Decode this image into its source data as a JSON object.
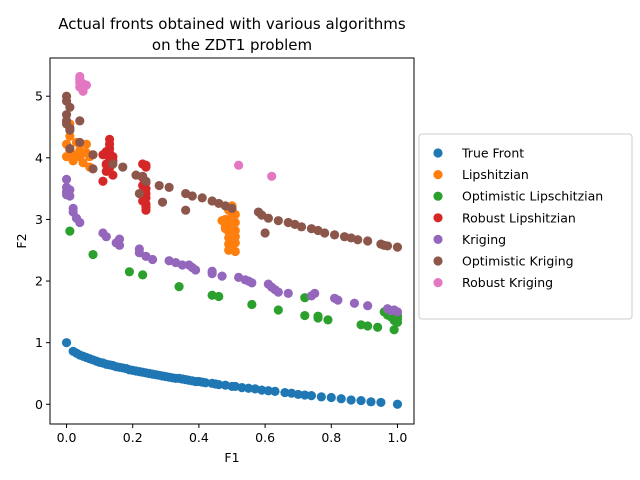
{
  "chart_data": {
    "type": "scatter",
    "title_lines": [
      "Actual fronts obtained with various algorithms",
      "on the ZDT1 problem"
    ],
    "xlabel": "F1",
    "ylabel": "F2",
    "xlim": [
      -0.05,
      1.05
    ],
    "ylim": [
      -0.32,
      5.62
    ],
    "xticks": [
      0.0,
      0.2,
      0.4,
      0.6,
      0.8,
      1.0
    ],
    "xtick_labels": [
      "0.0",
      "0.2",
      "0.4",
      "0.6",
      "0.8",
      "1.0"
    ],
    "yticks": [
      0,
      1,
      2,
      3,
      4,
      5
    ],
    "ytick_labels": [
      "0",
      "1",
      "2",
      "3",
      "4",
      "5"
    ],
    "legend_position": "right",
    "series": [
      {
        "name": "True Front",
        "color": "#1f77b4",
        "points": [
          [
            0.0,
            1.0
          ],
          [
            0.02,
            0.86
          ],
          [
            0.03,
            0.83
          ],
          [
            0.04,
            0.8
          ],
          [
            0.05,
            0.78
          ],
          [
            0.06,
            0.76
          ],
          [
            0.07,
            0.74
          ],
          [
            0.08,
            0.72
          ],
          [
            0.09,
            0.7
          ],
          [
            0.1,
            0.68
          ],
          [
            0.11,
            0.67
          ],
          [
            0.12,
            0.65
          ],
          [
            0.13,
            0.64
          ],
          [
            0.14,
            0.63
          ],
          [
            0.15,
            0.61
          ],
          [
            0.16,
            0.6
          ],
          [
            0.17,
            0.59
          ],
          [
            0.18,
            0.58
          ],
          [
            0.19,
            0.56
          ],
          [
            0.2,
            0.55
          ],
          [
            0.21,
            0.54
          ],
          [
            0.22,
            0.53
          ],
          [
            0.23,
            0.52
          ],
          [
            0.24,
            0.51
          ],
          [
            0.25,
            0.5
          ],
          [
            0.26,
            0.49
          ],
          [
            0.27,
            0.48
          ],
          [
            0.28,
            0.47
          ],
          [
            0.29,
            0.46
          ],
          [
            0.3,
            0.45
          ],
          [
            0.31,
            0.44
          ],
          [
            0.32,
            0.43
          ],
          [
            0.33,
            0.42
          ],
          [
            0.34,
            0.42
          ],
          [
            0.35,
            0.41
          ],
          [
            0.36,
            0.4
          ],
          [
            0.37,
            0.39
          ],
          [
            0.38,
            0.38
          ],
          [
            0.39,
            0.37
          ],
          [
            0.4,
            0.37
          ],
          [
            0.41,
            0.36
          ],
          [
            0.42,
            0.35
          ],
          [
            0.44,
            0.34
          ],
          [
            0.45,
            0.33
          ],
          [
            0.46,
            0.32
          ],
          [
            0.48,
            0.31
          ],
          [
            0.5,
            0.29
          ],
          [
            0.51,
            0.29
          ],
          [
            0.53,
            0.27
          ],
          [
            0.55,
            0.26
          ],
          [
            0.57,
            0.25
          ],
          [
            0.59,
            0.23
          ],
          [
            0.61,
            0.22
          ],
          [
            0.63,
            0.21
          ],
          [
            0.66,
            0.19
          ],
          [
            0.68,
            0.18
          ],
          [
            0.7,
            0.16
          ],
          [
            0.72,
            0.15
          ],
          [
            0.74,
            0.14
          ],
          [
            0.77,
            0.12
          ],
          [
            0.8,
            0.11
          ],
          [
            0.83,
            0.09
          ],
          [
            0.86,
            0.07
          ],
          [
            0.89,
            0.06
          ],
          [
            0.92,
            0.04
          ],
          [
            0.95,
            0.03
          ],
          [
            1.0,
            0.0
          ]
        ]
      },
      {
        "name": "Lipshitzian",
        "color": "#ff7f0e",
        "points": [
          [
            0.01,
            4.55
          ],
          [
            0.01,
            4.35
          ],
          [
            0.0,
            4.22
          ],
          [
            0.01,
            4.12
          ],
          [
            0.0,
            4.02
          ],
          [
            0.02,
            4.05
          ],
          [
            0.02,
            3.95
          ],
          [
            0.03,
            4.25
          ],
          [
            0.04,
            4.12
          ],
          [
            0.04,
            4.02
          ],
          [
            0.05,
            3.92
          ],
          [
            0.06,
            4.08
          ],
          [
            0.06,
            4.22
          ],
          [
            0.07,
            4.02
          ],
          [
            0.07,
            3.85
          ],
          [
            0.12,
            3.88
          ],
          [
            0.13,
            3.82
          ],
          [
            0.47,
            2.98
          ],
          [
            0.48,
            3.0
          ],
          [
            0.49,
            2.95
          ],
          [
            0.5,
            3.22
          ],
          [
            0.5,
            3.05
          ],
          [
            0.5,
            2.92
          ],
          [
            0.48,
            2.85
          ],
          [
            0.49,
            2.8
          ],
          [
            0.5,
            2.75
          ],
          [
            0.49,
            2.7
          ],
          [
            0.5,
            2.65
          ],
          [
            0.49,
            2.6
          ],
          [
            0.5,
            2.55
          ],
          [
            0.49,
            2.5
          ],
          [
            0.5,
            2.58
          ],
          [
            0.51,
            2.62
          ],
          [
            0.51,
            2.72
          ],
          [
            0.51,
            2.82
          ],
          [
            0.51,
            2.95
          ],
          [
            0.51,
            3.08
          ],
          [
            0.49,
            3.15
          ],
          [
            0.48,
            2.88
          ],
          [
            0.5,
            2.68
          ],
          [
            0.51,
            2.48
          ],
          [
            0.5,
            2.85
          ],
          [
            0.5,
            2.98
          ],
          [
            0.5,
            3.12
          ]
        ]
      },
      {
        "name": "Optimistic Lipschitzian",
        "color": "#2ca02c",
        "points": [
          [
            0.01,
            2.81
          ],
          [
            0.08,
            2.43
          ],
          [
            0.19,
            2.15
          ],
          [
            0.23,
            2.1
          ],
          [
            0.34,
            1.91
          ],
          [
            0.44,
            1.77
          ],
          [
            0.46,
            1.75
          ],
          [
            0.56,
            1.62
          ],
          [
            0.64,
            1.53
          ],
          [
            0.72,
            1.73
          ],
          [
            0.72,
            1.44
          ],
          [
            0.76,
            1.43
          ],
          [
            0.76,
            1.4
          ],
          [
            0.79,
            1.37
          ],
          [
            0.89,
            1.29
          ],
          [
            0.91,
            1.27
          ],
          [
            0.94,
            1.25
          ],
          [
            0.96,
            1.5
          ],
          [
            0.97,
            1.45
          ],
          [
            0.98,
            1.42
          ],
          [
            0.99,
            1.4
          ],
          [
            0.98,
            1.48
          ],
          [
            1.0,
            1.45
          ],
          [
            0.99,
            1.5
          ],
          [
            0.99,
            1.36
          ],
          [
            1.0,
            1.38
          ],
          [
            1.0,
            1.42
          ],
          [
            0.99,
            1.44
          ],
          [
            1.0,
            1.33
          ],
          [
            0.99,
            1.21
          ]
        ]
      },
      {
        "name": "Robust Lipshitzian",
        "color": "#d62728",
        "points": [
          [
            0.11,
            3.62
          ],
          [
            0.11,
            4.05
          ],
          [
            0.12,
            3.78
          ],
          [
            0.12,
            3.9
          ],
          [
            0.13,
            4.3
          ],
          [
            0.13,
            4.22
          ],
          [
            0.13,
            4.15
          ],
          [
            0.13,
            4.08
          ],
          [
            0.13,
            4.0
          ],
          [
            0.13,
            3.92
          ],
          [
            0.13,
            3.85
          ],
          [
            0.14,
            3.72
          ],
          [
            0.12,
            4.1
          ],
          [
            0.14,
            4.02
          ],
          [
            0.14,
            3.95
          ],
          [
            0.23,
            3.9
          ],
          [
            0.24,
            3.85
          ],
          [
            0.23,
            3.68
          ],
          [
            0.24,
            3.6
          ],
          [
            0.24,
            3.5
          ],
          [
            0.24,
            3.42
          ],
          [
            0.23,
            3.3
          ],
          [
            0.24,
            3.25
          ],
          [
            0.24,
            3.2
          ],
          [
            0.24,
            3.15
          ],
          [
            0.24,
            3.88
          ],
          [
            0.23,
            3.55
          ],
          [
            0.24,
            3.35
          ]
        ]
      },
      {
        "name": "Kriging",
        "color": "#9467bd",
        "points": [
          [
            0.0,
            3.65
          ],
          [
            0.0,
            3.52
          ],
          [
            0.0,
            3.45
          ],
          [
            0.0,
            3.4
          ],
          [
            0.01,
            3.48
          ],
          [
            0.01,
            3.38
          ],
          [
            0.02,
            3.18
          ],
          [
            0.02,
            3.12
          ],
          [
            0.03,
            3.02
          ],
          [
            0.04,
            2.95
          ],
          [
            0.11,
            2.78
          ],
          [
            0.12,
            2.72
          ],
          [
            0.15,
            2.62
          ],
          [
            0.16,
            2.58
          ],
          [
            0.16,
            2.68
          ],
          [
            0.22,
            2.52
          ],
          [
            0.22,
            2.46
          ],
          [
            0.24,
            2.4
          ],
          [
            0.26,
            2.35
          ],
          [
            0.31,
            2.33
          ],
          [
            0.33,
            2.3
          ],
          [
            0.35,
            2.26
          ],
          [
            0.37,
            2.26
          ],
          [
            0.38,
            2.22
          ],
          [
            0.39,
            2.18
          ],
          [
            0.44,
            2.16
          ],
          [
            0.44,
            2.12
          ],
          [
            0.47,
            2.08
          ],
          [
            0.52,
            2.06
          ],
          [
            0.54,
            2.02
          ],
          [
            0.55,
            2.0
          ],
          [
            0.56,
            1.97
          ],
          [
            0.61,
            1.95
          ],
          [
            0.62,
            1.9
          ],
          [
            0.63,
            1.86
          ],
          [
            0.64,
            1.82
          ],
          [
            0.67,
            1.8
          ],
          [
            0.74,
            1.76
          ],
          [
            0.75,
            1.8
          ],
          [
            0.81,
            1.72
          ],
          [
            0.82,
            1.69
          ],
          [
            0.87,
            1.64
          ],
          [
            0.91,
            1.6
          ],
          [
            0.97,
            1.55
          ],
          [
            0.98,
            1.52
          ],
          [
            1.0,
            1.5
          ],
          [
            0.99,
            1.53
          ]
        ]
      },
      {
        "name": "Optimistic Kriging",
        "color": "#8c564b",
        "points": [
          [
            0.0,
            5.0
          ],
          [
            0.0,
            4.92
          ],
          [
            0.01,
            4.82
          ],
          [
            0.0,
            4.7
          ],
          [
            0.0,
            4.6
          ],
          [
            0.0,
            4.55
          ],
          [
            0.01,
            4.45
          ],
          [
            0.01,
            4.48
          ],
          [
            0.04,
            4.6
          ],
          [
            0.04,
            4.25
          ],
          [
            0.01,
            4.15
          ],
          [
            0.08,
            4.05
          ],
          [
            0.08,
            3.82
          ],
          [
            0.14,
            3.9
          ],
          [
            0.17,
            3.85
          ],
          [
            0.21,
            3.72
          ],
          [
            0.23,
            3.7
          ],
          [
            0.24,
            3.62
          ],
          [
            0.22,
            3.42
          ],
          [
            0.28,
            3.55
          ],
          [
            0.31,
            3.52
          ],
          [
            0.29,
            3.28
          ],
          [
            0.36,
            3.42
          ],
          [
            0.38,
            3.38
          ],
          [
            0.36,
            3.15
          ],
          [
            0.41,
            3.35
          ],
          [
            0.44,
            3.3
          ],
          [
            0.46,
            3.26
          ],
          [
            0.48,
            3.22
          ],
          [
            0.5,
            3.18
          ],
          [
            0.58,
            3.12
          ],
          [
            0.59,
            3.07
          ],
          [
            0.61,
            3.02
          ],
          [
            0.64,
            2.98
          ],
          [
            0.67,
            2.95
          ],
          [
            0.69,
            2.92
          ],
          [
            0.71,
            2.88
          ],
          [
            0.74,
            2.85
          ],
          [
            0.76,
            2.82
          ],
          [
            0.78,
            2.78
          ],
          [
            0.81,
            2.75
          ],
          [
            0.84,
            2.72
          ],
          [
            0.86,
            2.7
          ],
          [
            0.88,
            2.67
          ],
          [
            0.91,
            2.65
          ],
          [
            0.95,
            2.6
          ],
          [
            0.96,
            2.58
          ],
          [
            0.97,
            2.57
          ],
          [
            1.0,
            2.55
          ],
          [
            0.6,
            2.78
          ]
        ]
      },
      {
        "name": "Robust Kriging",
        "color": "#e377c2",
        "points": [
          [
            0.04,
            5.32
          ],
          [
            0.04,
            5.27
          ],
          [
            0.05,
            5.2
          ],
          [
            0.04,
            5.15
          ],
          [
            0.05,
            5.12
          ],
          [
            0.05,
            5.08
          ],
          [
            0.04,
            5.22
          ],
          [
            0.06,
            5.18
          ],
          [
            0.52,
            3.88
          ],
          [
            0.62,
            3.7
          ]
        ]
      }
    ]
  }
}
